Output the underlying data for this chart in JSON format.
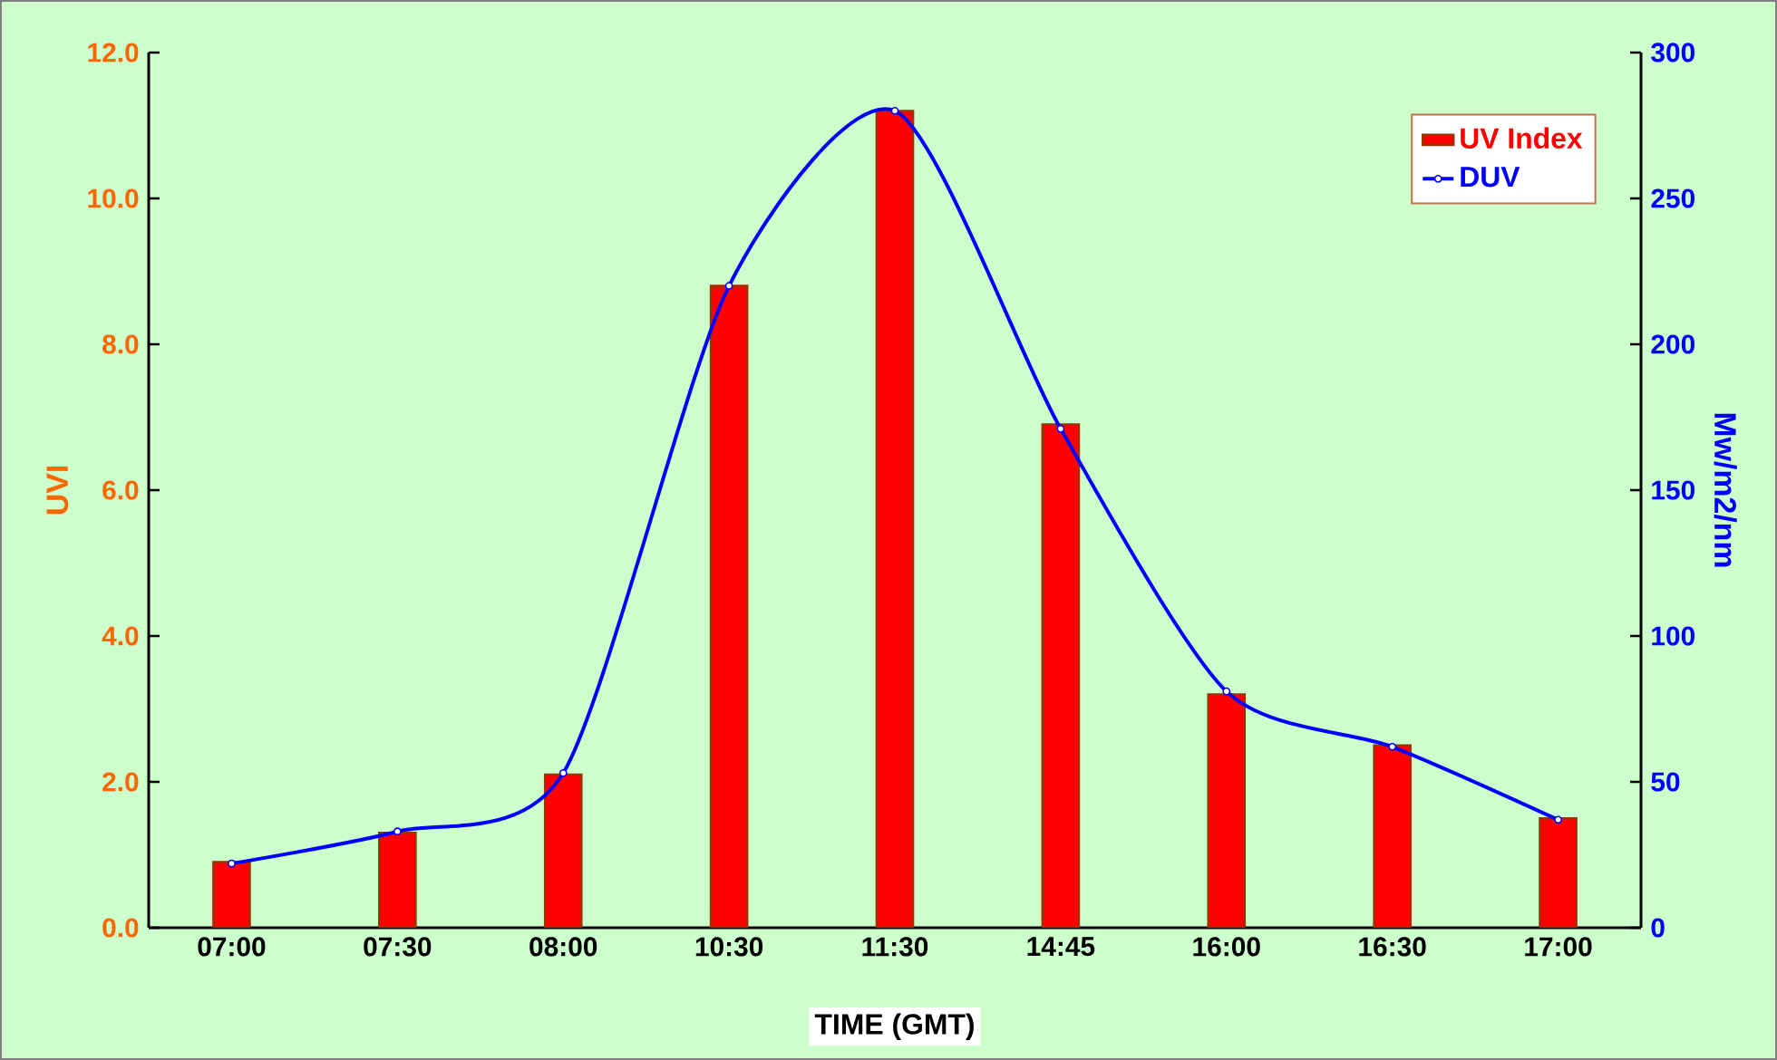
{
  "chart_data": {
    "type": "bar",
    "xlabel": "TIME (GMT)",
    "ylabel": "UVI",
    "y2label": "Mw/m2/nm",
    "categories": [
      "07:00",
      "07:30",
      "08:00",
      "10:30",
      "11:30",
      "14:45",
      "16:00",
      "16:30",
      "17:00"
    ],
    "series": [
      {
        "name": "UV Index",
        "color": "#ff0000",
        "values": [
          0.9,
          1.3,
          2.1,
          8.8,
          11.2,
          6.9,
          3.2,
          2.5,
          1.5
        ]
      },
      {
        "name": "DUV",
        "type": "line",
        "axis": "y2",
        "color": "#0000ff",
        "marker": "circle",
        "values": [
          22,
          33,
          53,
          220,
          280,
          171,
          81,
          62,
          37
        ]
      }
    ],
    "ylim": [
      0,
      12
    ],
    "yticks": [
      {
        "value": 0,
        "label": "0.0"
      },
      {
        "value": 2,
        "label": "2.0"
      },
      {
        "value": 4,
        "label": "4.0"
      },
      {
        "value": 6,
        "label": "6.0"
      },
      {
        "value": 8,
        "label": "8.0"
      },
      {
        "value": 10,
        "label": "10.0"
      },
      {
        "value": 12,
        "label": "12.0"
      }
    ],
    "y2lim": [
      0,
      300
    ],
    "y2ticks": [
      0,
      50,
      100,
      150,
      200,
      250,
      300
    ],
    "legend": "top right"
  }
}
